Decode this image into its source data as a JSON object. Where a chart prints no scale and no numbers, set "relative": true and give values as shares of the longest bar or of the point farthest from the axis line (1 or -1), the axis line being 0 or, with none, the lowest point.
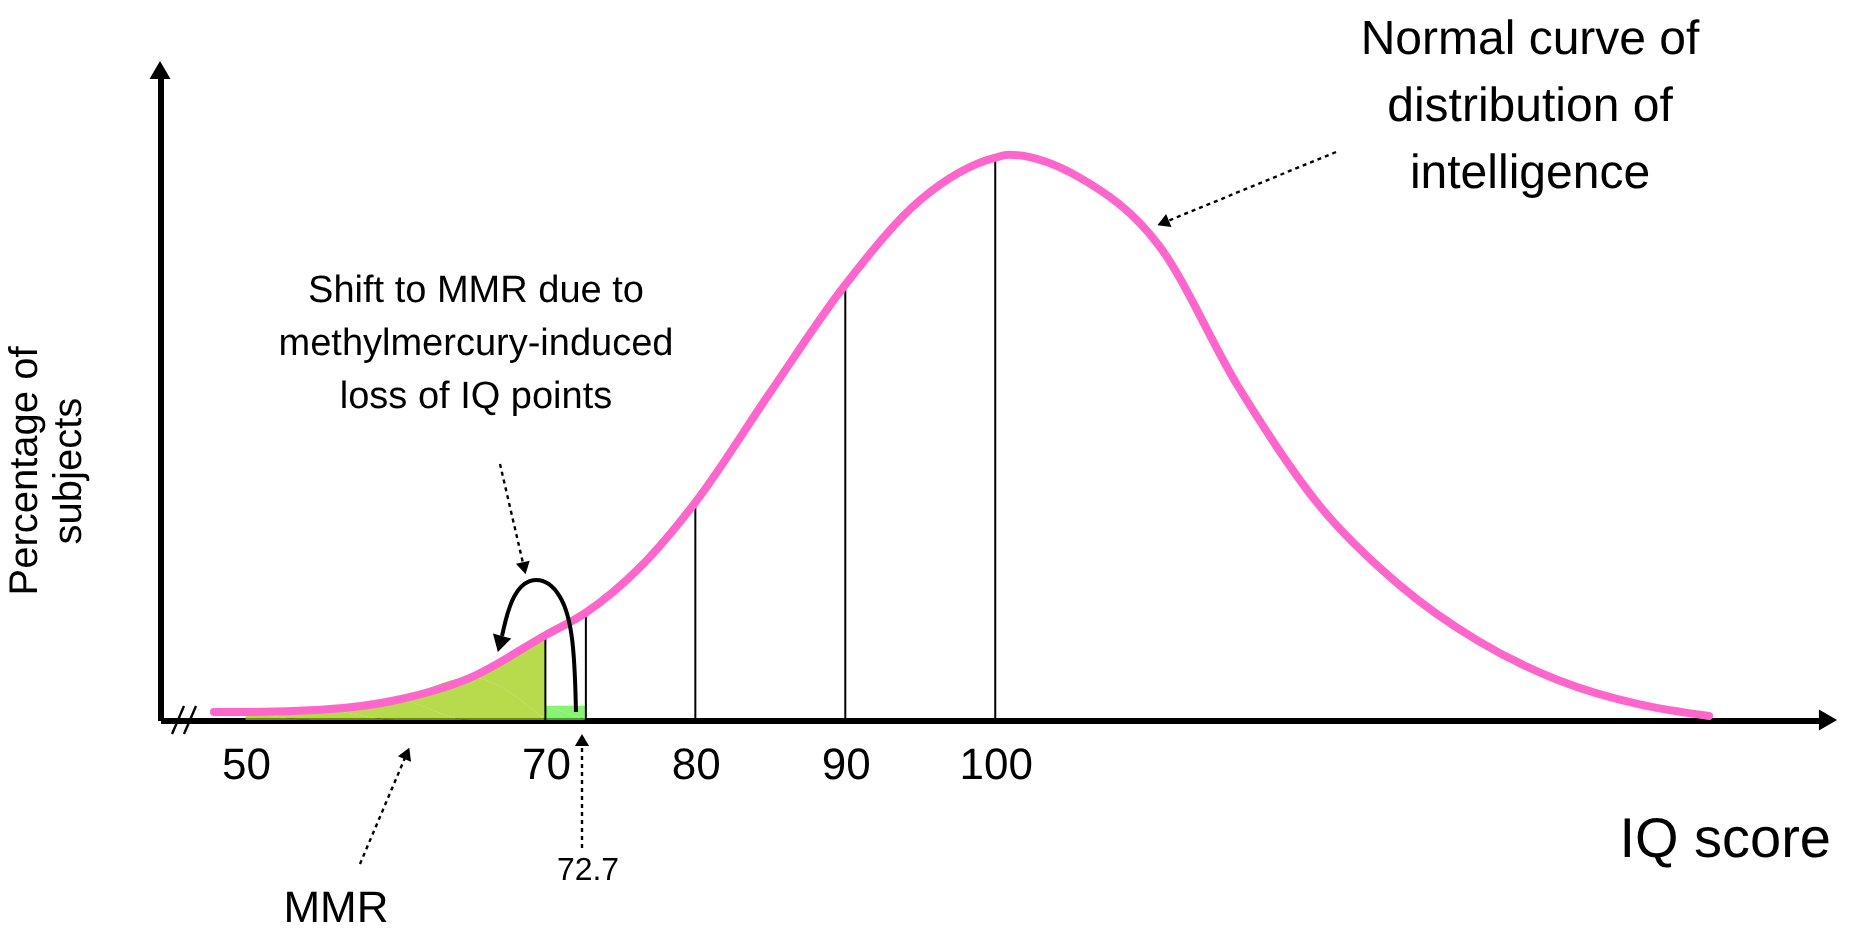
{
  "chart_data": {
    "type": "line",
    "relative": true,
    "xlabel": "IQ score",
    "ylabel": "Percentage of subjects",
    "xlim": [
      44.3,
      155
    ],
    "xticks": [
      50,
      70,
      80,
      90,
      100
    ],
    "series": [
      {
        "color": "#ff66cc",
        "x": [
          47.9,
          50,
          55,
          60,
          65,
          70,
          72.7,
          76.3,
          80,
          85,
          90,
          95,
          100,
          100.9,
          105.6,
          110.9,
          116.2,
          121.6,
          126.9,
          132.2,
          137.6,
          142.9,
          147.6
        ],
        "values": [
          0.014,
          0.014,
          0.018,
          0.035,
          0.075,
          0.15,
          0.19,
          0.27,
          0.385,
          0.58,
          0.77,
          0.92,
          0.995,
          1,
          0.96,
          0.84,
          0.59,
          0.38,
          0.24,
          0.14,
          0.07,
          0.028,
          0.007
        ]
      },
      {
        "type": "area",
        "color": "#99cc00",
        "x": [
          50,
          55,
          60,
          65,
          70
        ],
        "values": [
          0.014,
          0.018,
          0.035,
          0.075,
          0.15
        ]
      },
      {
        "type": "area",
        "color": "#55ee33",
        "x": [
          70,
          72.7
        ],
        "values": [
          0.025,
          0.025
        ]
      }
    ],
    "ref_lines": [
      {
        "axis": "x",
        "value": 70
      },
      {
        "axis": "x",
        "value": 72.7
      },
      {
        "axis": "x",
        "value": 80
      },
      {
        "axis": "x",
        "value": 90
      },
      {
        "axis": "x",
        "value": 100
      }
    ],
    "annotations": [
      {
        "text": "Normal curve of distribution of intelligence",
        "x": 110.7,
        "y": 0.86
      },
      "Shift to MMR due to methylmercury-induced loss of IQ points",
      "MMR",
      "72.7"
    ]
  }
}
